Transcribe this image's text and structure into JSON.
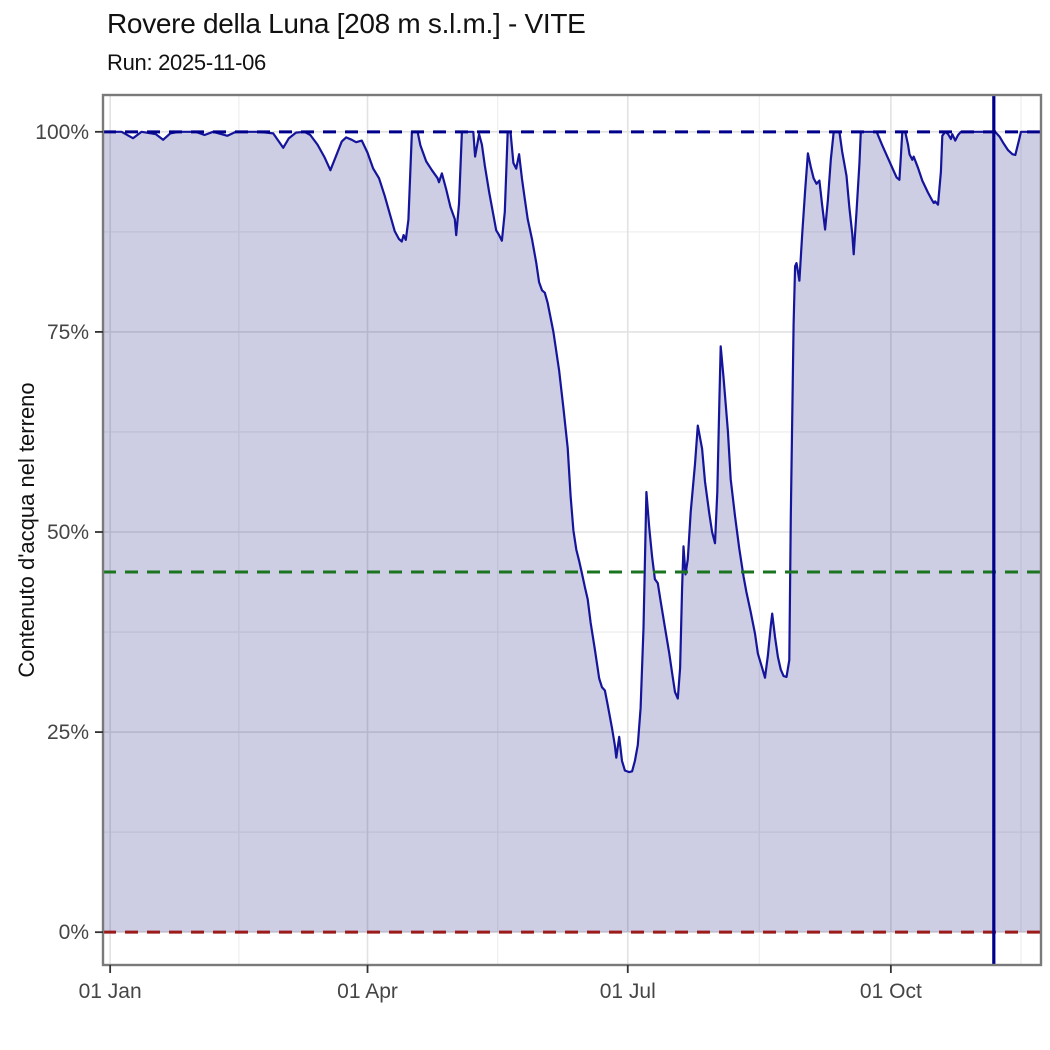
{
  "header": {
    "title": "Rovere della Luna [208 m s.l.m.] - VITE",
    "subtitle": "Run: 2025-11-06"
  },
  "chart_data": {
    "type": "area",
    "title": "Rovere della Luna [208 m s.l.m.] - VITE",
    "subtitle": "Run: 2025-11-06",
    "xlabel": "",
    "ylabel": "Contenuto d'acqua nel terreno",
    "x_unit": "day_of_year_2025",
    "x_domain": [
      -2.5,
      325.5
    ],
    "y_domain": [
      -4.1,
      104.6
    ],
    "x_ticks": [
      {
        "day": 0,
        "label": "01 Jan"
      },
      {
        "day": 90,
        "label": "01 Apr"
      },
      {
        "day": 181,
        "label": "01 Jul"
      },
      {
        "day": 273,
        "label": "01 Oct"
      }
    ],
    "x_minor": [
      45,
      135.5,
      227,
      318.5
    ],
    "y_ticks": [
      {
        "value": 0,
        "label": "0%"
      },
      {
        "value": 25,
        "label": "25%"
      },
      {
        "value": 50,
        "label": "50%"
      },
      {
        "value": 75,
        "label": "75%"
      },
      {
        "value": 100,
        "label": "100%"
      }
    ],
    "y_minor": [
      12.5,
      37.5,
      62.5,
      87.5
    ],
    "grid": true,
    "legend": false,
    "panel": {
      "background": "#ffffff",
      "border": "#7a7a7a",
      "grid_major": "#e2e2e2",
      "grid_minor": "#efefef",
      "tick_color": "#333333",
      "label_color": "#454545",
      "axis_title_color": "#111111"
    },
    "reference_lines": [
      {
        "kind": "hline",
        "value": 100,
        "color": "#00008B",
        "style": "dashed",
        "name": "saturation-100pct"
      },
      {
        "kind": "hline",
        "value": 45,
        "color": "#1b7520",
        "style": "dashed",
        "name": "threshold-45pct"
      },
      {
        "kind": "hline",
        "value": 0,
        "color": "#9b1a1a",
        "style": "dashed",
        "name": "wilting-0pct"
      },
      {
        "kind": "vline",
        "day": 309,
        "color": "#00008B",
        "style": "solid",
        "name": "run-date-line"
      }
    ],
    "series": [
      {
        "name": "contenuto-acqua-nel-terreno",
        "line_color": "#15159b",
        "fill_color": "rgba(21,21,125,0.21)",
        "points": [
          [
            -2.5,
            100
          ],
          [
            0,
            100
          ],
          [
            4,
            100
          ],
          [
            8,
            99.2
          ],
          [
            11,
            100
          ],
          [
            16,
            99.7
          ],
          [
            18.5,
            99
          ],
          [
            21,
            99.8
          ],
          [
            24,
            100
          ],
          [
            30,
            100
          ],
          [
            33,
            99.6
          ],
          [
            36,
            100
          ],
          [
            41,
            99.5
          ],
          [
            44,
            100
          ],
          [
            52,
            100
          ],
          [
            57,
            99.8
          ],
          [
            60.5,
            98
          ],
          [
            62.5,
            99.2
          ],
          [
            65,
            99.9
          ],
          [
            68,
            100
          ],
          [
            70,
            99.6
          ],
          [
            72.5,
            98.4
          ],
          [
            75,
            96.8
          ],
          [
            77,
            95.2
          ],
          [
            79,
            97
          ],
          [
            81,
            98.8
          ],
          [
            82.5,
            99.3
          ],
          [
            84.5,
            99
          ],
          [
            86,
            98.7
          ],
          [
            88,
            98.9
          ],
          [
            90,
            97.4
          ],
          [
            92,
            95.4
          ],
          [
            94,
            94.2
          ],
          [
            96,
            92
          ],
          [
            98,
            89.5
          ],
          [
            99.5,
            87.6
          ],
          [
            101,
            86.6
          ],
          [
            102,
            86.3
          ],
          [
            102.6,
            87.1
          ],
          [
            103.4,
            86.5
          ],
          [
            104.3,
            89
          ],
          [
            105.5,
            100
          ],
          [
            107.5,
            100
          ],
          [
            108.5,
            98.3
          ],
          [
            110.5,
            96.3
          ],
          [
            112.5,
            95.2
          ],
          [
            114.5,
            94.2
          ],
          [
            115,
            93.7
          ],
          [
            116,
            94.8
          ],
          [
            117.5,
            92.8
          ],
          [
            119,
            90.6
          ],
          [
            120.5,
            89.1
          ],
          [
            121,
            87.1
          ],
          [
            122,
            91
          ],
          [
            123,
            100
          ],
          [
            127,
            100
          ],
          [
            127.6,
            96.9
          ],
          [
            129,
            99.7
          ],
          [
            130,
            98.4
          ],
          [
            131,
            95.8
          ],
          [
            132.5,
            92.5
          ],
          [
            134,
            89.6
          ],
          [
            135,
            87.7
          ],
          [
            136,
            87.1
          ],
          [
            137,
            86.4
          ],
          [
            138,
            90
          ],
          [
            139,
            100
          ],
          [
            140,
            100
          ],
          [
            141,
            96.1
          ],
          [
            142,
            95.4
          ],
          [
            143,
            97.2
          ],
          [
            144,
            94.1
          ],
          [
            145,
            91.6
          ],
          [
            146,
            89.1
          ],
          [
            147.5,
            86.6
          ],
          [
            149,
            83.6
          ],
          [
            150,
            81.2
          ],
          [
            151,
            80.2
          ],
          [
            152,
            79.9
          ],
          [
            153,
            78.6
          ],
          [
            155,
            75
          ],
          [
            157,
            70.2
          ],
          [
            158.5,
            65.5
          ],
          [
            160,
            60.5
          ],
          [
            161,
            54.5
          ],
          [
            162,
            50.2
          ],
          [
            163,
            47.8
          ],
          [
            164,
            46.4
          ],
          [
            165,
            44.8
          ],
          [
            166,
            43.1
          ],
          [
            167,
            41.6
          ],
          [
            168,
            38.7
          ],
          [
            169.5,
            35.3
          ],
          [
            171,
            31.7
          ],
          [
            172,
            30.6
          ],
          [
            173,
            30.2
          ],
          [
            174,
            28.4
          ],
          [
            175.5,
            25.5
          ],
          [
            176.5,
            23.3
          ],
          [
            177,
            21.8
          ],
          [
            178,
            24.4
          ],
          [
            178.5,
            22.9
          ],
          [
            179,
            21.4
          ],
          [
            180,
            20.2
          ],
          [
            181.5,
            20
          ],
          [
            182.5,
            20.1
          ],
          [
            183.5,
            21.4
          ],
          [
            184.5,
            23.4
          ],
          [
            185.5,
            28
          ],
          [
            186.5,
            38
          ],
          [
            187.5,
            55
          ],
          [
            188.5,
            50.6
          ],
          [
            189.5,
            46.9
          ],
          [
            190.5,
            44.1
          ],
          [
            191.5,
            43.6
          ],
          [
            192.5,
            41.3
          ],
          [
            194,
            38.1
          ],
          [
            195.5,
            34.9
          ],
          [
            196.5,
            32.4
          ],
          [
            197.5,
            30
          ],
          [
            198.5,
            29.2
          ],
          [
            199.3,
            33
          ],
          [
            200,
            43
          ],
          [
            200.5,
            48.2
          ],
          [
            201.2,
            44.7
          ],
          [
            202,
            46.6
          ],
          [
            203,
            52.5
          ],
          [
            204.5,
            58.5
          ],
          [
            205.5,
            63.3
          ],
          [
            207,
            60.4
          ],
          [
            208,
            56.3
          ],
          [
            209.5,
            52.3
          ],
          [
            210.5,
            50
          ],
          [
            211.5,
            48.6
          ],
          [
            212.3,
            55
          ],
          [
            213,
            66
          ],
          [
            213.5,
            73.2
          ],
          [
            214.5,
            69.2
          ],
          [
            216,
            62.6
          ],
          [
            217,
            56.6
          ],
          [
            218.5,
            52
          ],
          [
            220,
            47.9
          ],
          [
            221.5,
            44.4
          ],
          [
            222.5,
            42.5
          ],
          [
            224,
            40
          ],
          [
            225.5,
            37.3
          ],
          [
            226.5,
            34.8
          ],
          [
            228,
            33
          ],
          [
            229,
            31.8
          ],
          [
            230,
            34.6
          ],
          [
            231,
            38.3
          ],
          [
            231.5,
            39.8
          ],
          [
            232.5,
            36.9
          ],
          [
            233.5,
            34.4
          ],
          [
            234.5,
            32.8
          ],
          [
            235.5,
            32
          ],
          [
            236.5,
            31.9
          ],
          [
            237.5,
            34
          ],
          [
            238,
            52
          ],
          [
            239,
            76
          ],
          [
            239.5,
            83.2
          ],
          [
            240,
            83.6
          ],
          [
            241,
            81.4
          ],
          [
            242,
            87.2
          ],
          [
            243,
            92.6
          ],
          [
            244,
            97.3
          ],
          [
            245,
            95.6
          ],
          [
            246,
            94.2
          ],
          [
            247,
            93.5
          ],
          [
            248,
            93.9
          ],
          [
            249,
            90.8
          ],
          [
            250,
            87.8
          ],
          [
            251,
            91.5
          ],
          [
            252,
            96.5
          ],
          [
            253,
            100
          ],
          [
            255,
            100
          ],
          [
            256,
            97.5
          ],
          [
            257.5,
            94.5
          ],
          [
            258.5,
            90.5
          ],
          [
            259.5,
            87.2
          ],
          [
            260,
            84.7
          ],
          [
            261,
            90
          ],
          [
            262,
            96
          ],
          [
            262.5,
            100
          ],
          [
            268,
            100
          ],
          [
            270,
            98.3
          ],
          [
            272,
            96.7
          ],
          [
            274,
            95.1
          ],
          [
            275,
            94.3
          ],
          [
            276,
            94
          ],
          [
            276.5,
            97
          ],
          [
            277,
            100
          ],
          [
            278,
            100
          ],
          [
            279,
            98.4
          ],
          [
            279.5,
            97.2
          ],
          [
            280.5,
            96.5
          ],
          [
            281,
            96.9
          ],
          [
            282.5,
            95.5
          ],
          [
            284,
            93.9
          ],
          [
            286,
            92.4
          ],
          [
            287.5,
            91.4
          ],
          [
            288,
            91.1
          ],
          [
            288.5,
            91.3
          ],
          [
            289.5,
            90.9
          ],
          [
            290.5,
            95
          ],
          [
            291,
            99.5
          ],
          [
            292,
            100
          ],
          [
            293,
            99.7
          ],
          [
            294,
            99.1
          ],
          [
            294.5,
            99.7
          ],
          [
            295.5,
            98.9
          ],
          [
            296.5,
            99.6
          ],
          [
            297.5,
            100
          ],
          [
            309.5,
            100
          ],
          [
            311,
            99.4
          ],
          [
            312.5,
            98.5
          ],
          [
            314,
            97.7
          ],
          [
            315.5,
            97.2
          ],
          [
            316.5,
            97.1
          ],
          [
            317.5,
            98.5
          ],
          [
            318.5,
            100
          ],
          [
            325.5,
            100
          ]
        ]
      }
    ]
  }
}
